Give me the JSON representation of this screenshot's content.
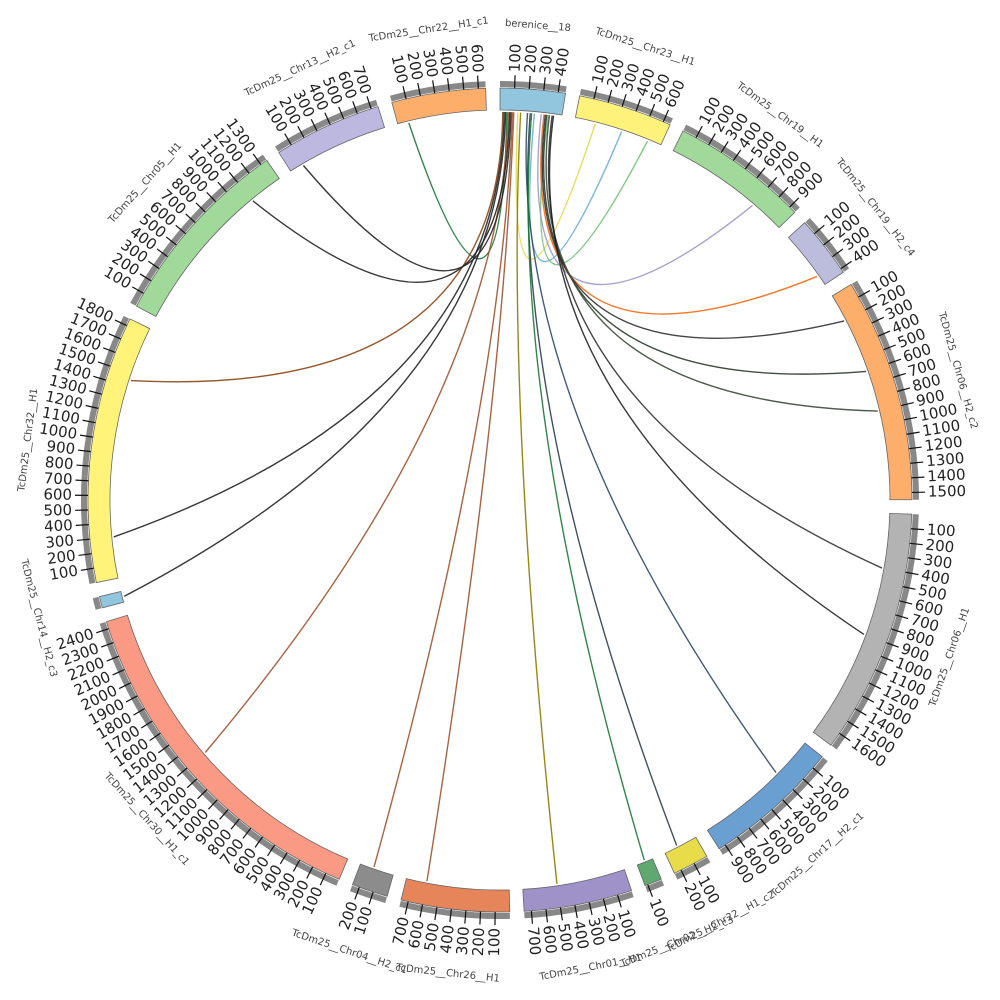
{
  "chart_data": {
    "type": "chord",
    "segments": [
      {
        "name": "berenice__18",
        "color": "#92c5de",
        "size": 450,
        "ticks": [
          100,
          200,
          300,
          400
        ]
      },
      {
        "name": "TcDm25__Chr23__H1",
        "color": "#fff27a",
        "size": 650,
        "ticks": [
          100,
          200,
          300,
          400,
          500,
          600
        ]
      },
      {
        "name": "TcDm25__Chr19__H1",
        "color": "#a1d99b",
        "size": 950,
        "ticks": [
          100,
          200,
          300,
          400,
          500,
          600,
          700,
          800,
          900
        ]
      },
      {
        "name": "TcDm25__Chr19__H2_c4",
        "color": "#bcbddc",
        "size": 430,
        "ticks": [
          100,
          200,
          300,
          400
        ]
      },
      {
        "name": "TcDm25__Chr06__H2_c2",
        "color": "#fdae6b",
        "size": 1550,
        "ticks": [
          100,
          200,
          300,
          400,
          500,
          600,
          700,
          800,
          900,
          1000,
          1100,
          1200,
          1300,
          1400,
          1500
        ]
      },
      {
        "name": "TcDm25__Chr06__H1",
        "color": "#b3b3b3",
        "size": 1700,
        "ticks": [
          100,
          200,
          300,
          400,
          500,
          600,
          700,
          800,
          900,
          1000,
          1100,
          1200,
          1300,
          1400,
          1500,
          1600
        ]
      },
      {
        "name": "TcDm25__Chr17__H2_c1",
        "color": "#6a9fd2",
        "size": 950,
        "ticks": [
          100,
          200,
          300,
          400,
          500,
          600,
          700,
          800,
          900
        ]
      },
      {
        "name": "TcDm25__Chr22__H1_c2",
        "color": "#e8dc4a",
        "size": 250,
        "ticks": [
          100,
          200
        ]
      },
      {
        "name": "TcDm25__Chr02__H2_c3",
        "color": "#5fa870",
        "size": 120,
        "ticks": [
          100
        ]
      },
      {
        "name": "TcDm25__Chr01__H1",
        "color": "#9f92c9",
        "size": 750,
        "ticks": [
          100,
          200,
          300,
          400,
          500,
          600,
          700
        ]
      },
      {
        "name": "TcDm25__Chr26__H1",
        "color": "#e6845a",
        "size": 750,
        "ticks": [
          100,
          200,
          300,
          400,
          500,
          600,
          700
        ]
      },
      {
        "name": "TcDm25__Chr04__H2_c1",
        "color": "#8c8c8c",
        "size": 250,
        "ticks": [
          100,
          200
        ]
      },
      {
        "name": "TcDm25__Chr30__H1_c1",
        "color": "#fb9a84",
        "size": 2450,
        "ticks": [
          100,
          200,
          300,
          400,
          500,
          600,
          700,
          800,
          900,
          1000,
          1100,
          1200,
          1300,
          1400,
          1500,
          1600,
          1700,
          1800,
          1900,
          2000,
          2100,
          2200,
          2300,
          2400
        ]
      },
      {
        "name": "TcDm25__Chr14__H2_c3",
        "color": "#92c5de",
        "size": 80,
        "ticks": []
      },
      {
        "name": "TcDm25__Chr32__H1",
        "color": "#fff37a",
        "size": 1850,
        "ticks": [
          100,
          200,
          300,
          400,
          500,
          600,
          700,
          800,
          900,
          1000,
          1100,
          1200,
          1300,
          1400,
          1500,
          1600,
          1700,
          1800
        ]
      },
      {
        "name": "TcDm25__Chr05__H1",
        "color": "#a1d99b",
        "size": 1350,
        "ticks": [
          100,
          200,
          300,
          400,
          500,
          600,
          700,
          800,
          900,
          1000,
          1100,
          1200,
          1300
        ]
      },
      {
        "name": "TcDm25__Chr13__H2_c1",
        "color": "#bcb8e0",
        "size": 750,
        "ticks": [
          100,
          200,
          300,
          400,
          500,
          600,
          700
        ]
      },
      {
        "name": "TcDm25__Chr22__H1_c1",
        "color": "#fdae6b",
        "size": 650,
        "ticks": [
          100,
          200,
          300,
          400,
          500,
          600
        ]
      }
    ],
    "links": [
      {
        "from": "berenice__18",
        "from_pos": 50,
        "to": "TcDm25__Chr22__H1_c1",
        "to_pos": 80,
        "color": "#1b7837"
      },
      {
        "from": "berenice__18",
        "from_pos": 130,
        "to": "TcDm25__Chr23__H1",
        "to_pos": 150,
        "color": "#e6d84a"
      },
      {
        "from": "berenice__18",
        "from_pos": 250,
        "to": "TcDm25__Chr23__H1",
        "to_pos": 350,
        "color": "#6baed6"
      },
      {
        "from": "berenice__18",
        "from_pos": 350,
        "to": "TcDm25__Chr23__H1",
        "to_pos": 550,
        "color": "#74c476"
      },
      {
        "from": "berenice__18",
        "from_pos": 300,
        "to": "TcDm25__Chr19__H1",
        "to_pos": 700,
        "color": "#9e9ac8"
      },
      {
        "from": "berenice__18",
        "from_pos": 320,
        "to": "TcDm25__Chr19__H2_c4",
        "to_pos": 350,
        "color": "#f16913"
      },
      {
        "from": "berenice__18",
        "from_pos": 330,
        "to": "TcDm25__Chr06__H2_c2",
        "to_pos": 200,
        "color": "#333333"
      },
      {
        "from": "berenice__18",
        "from_pos": 340,
        "to": "TcDm25__Chr06__H2_c2",
        "to_pos": 600,
        "color": "#2b3a2b"
      },
      {
        "from": "berenice__18",
        "from_pos": 360,
        "to": "TcDm25__Chr06__H2_c2",
        "to_pos": 900,
        "color": "#3a4a3a"
      },
      {
        "from": "berenice__18",
        "from_pos": 380,
        "to": "TcDm25__Chr06__H1",
        "to_pos": 400,
        "color": "#333333"
      },
      {
        "from": "berenice__18",
        "from_pos": 390,
        "to": "TcDm25__Chr06__H1",
        "to_pos": 900,
        "color": "#222222"
      },
      {
        "from": "berenice__18",
        "from_pos": 200,
        "to": "TcDm25__Chr17__H2_c1",
        "to_pos": 300,
        "color": "#2c4a6a"
      },
      {
        "from": "berenice__18",
        "from_pos": 220,
        "to": "TcDm25__Chr22__H1_c2",
        "to_pos": 150,
        "color": "#2c3e50"
      },
      {
        "from": "berenice__18",
        "from_pos": 230,
        "to": "TcDm25__Chr02__H2_c3",
        "to_pos": 60,
        "color": "#1b7837"
      },
      {
        "from": "berenice__18",
        "from_pos": 150,
        "to": "TcDm25__Chr01__H1",
        "to_pos": 500,
        "color": "#8c7a00"
      },
      {
        "from": "berenice__18",
        "from_pos": 100,
        "to": "TcDm25__Chr26__H1",
        "to_pos": 600,
        "color": "#a0522d"
      },
      {
        "from": "berenice__18",
        "from_pos": 90,
        "to": "TcDm25__Chr04__H2_c1",
        "to_pos": 150,
        "color": "#a0522d"
      },
      {
        "from": "berenice__18",
        "from_pos": 60,
        "to": "TcDm25__Chr30__H1_c1",
        "to_pos": 1300,
        "color": "#a0522d"
      },
      {
        "from": "berenice__18",
        "from_pos": 40,
        "to": "TcDm25__Chr14__H2_c3",
        "to_pos": 40,
        "color": "#222222"
      },
      {
        "from": "berenice__18",
        "from_pos": 30,
        "to": "TcDm25__Chr32__H1",
        "to_pos": 300,
        "color": "#222222"
      },
      {
        "from": "berenice__18",
        "from_pos": 20,
        "to": "TcDm25__Chr32__H1",
        "to_pos": 1450,
        "color": "#8b4513"
      },
      {
        "from": "berenice__18",
        "from_pos": 70,
        "to": "TcDm25__Chr05__H1",
        "to_pos": 1100,
        "color": "#222222"
      },
      {
        "from": "berenice__18",
        "from_pos": 80,
        "to": "TcDm25__Chr13__H2_c1",
        "to_pos": 100,
        "color": "#222222"
      }
    ]
  }
}
